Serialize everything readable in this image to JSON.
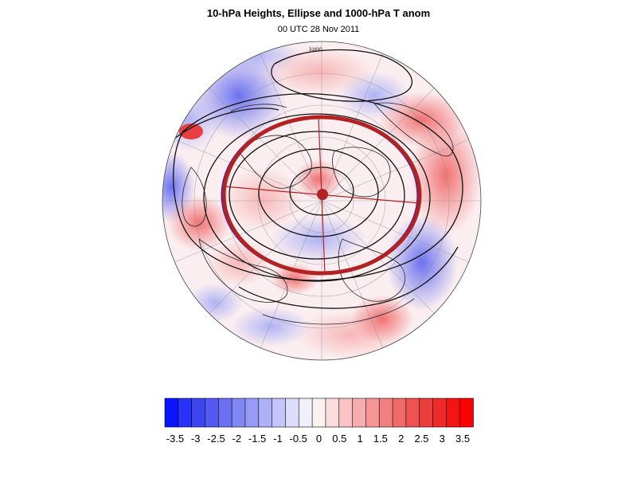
{
  "title": "10-hPa Heights, Ellipse and 1000-hPa T anom",
  "subtitle": "00 UTC 28 Nov 2011",
  "contour_label": "31630",
  "colorbar": {
    "levels": [
      "-3.5",
      "-3",
      "-2.5",
      "-2",
      "-1.5",
      "-1",
      "-0.5",
      "0",
      "0.5",
      "1",
      "1.5",
      "2",
      "2.5",
      "3",
      "3.5"
    ],
    "min": -3.75,
    "max": 3.75,
    "colors_negative": [
      "#0a14ff",
      "#2a32f6",
      "#3d45f0",
      "#5258f0",
      "#6a70f2",
      "#8086f4",
      "#979bf5",
      "#adb0f7",
      "#c4c6f9",
      "#dcdcfb",
      "#f0f0fc"
    ],
    "colors_positive": [
      "#fdf0f0",
      "#fbdcdc",
      "#f9c4c4",
      "#f7adad",
      "#f59797",
      "#f28080",
      "#f06a6a",
      "#ee5252",
      "#ec3d3d",
      "#f02a2a",
      "#f51414",
      "#ff0000"
    ]
  },
  "map": {
    "projection": "orthographic-north-polar",
    "ellipse_color": "#b22222",
    "center_dot_color": "#b22222",
    "heights_contour_color": "#000000"
  }
}
